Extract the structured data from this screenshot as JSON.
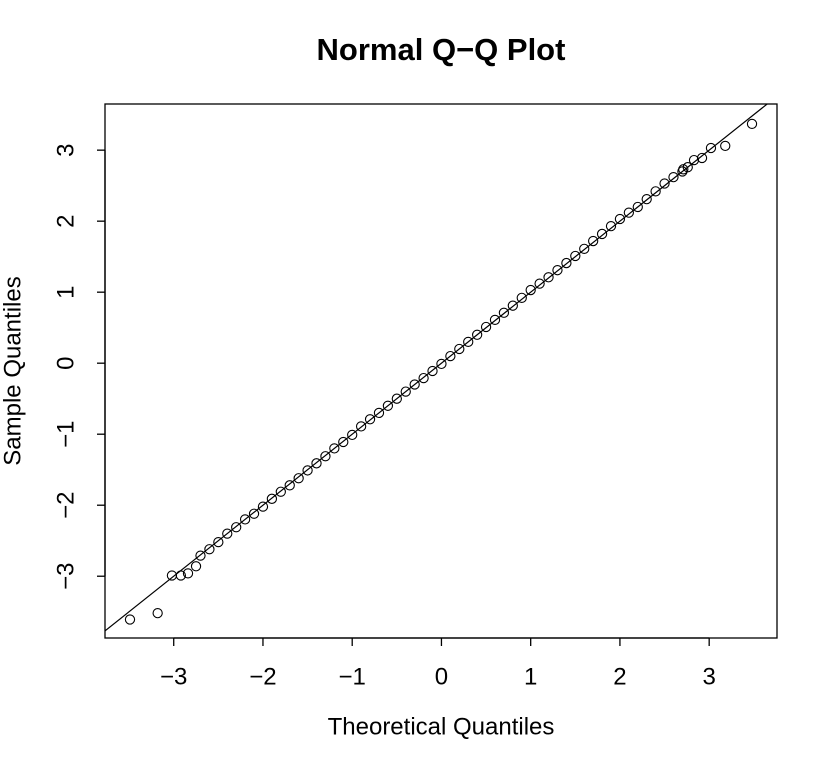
{
  "chart_data": {
    "type": "scatter",
    "title": "Normal Q−Q Plot",
    "x_label": "Theoretical Quantiles",
    "y_label": "Sample Quantiles",
    "xlim": [
      -3.77,
      3.76
    ],
    "ylim": [
      -3.87,
      3.65
    ],
    "xticks": [
      {
        "value": -3,
        "label": "−3"
      },
      {
        "value": -2,
        "label": "−2"
      },
      {
        "value": -1,
        "label": "−1"
      },
      0,
      1,
      2,
      3
    ],
    "yticks": [
      {
        "value": -3,
        "label": "−3"
      },
      {
        "value": -2,
        "label": "−2"
      },
      {
        "value": -1,
        "label": "−1"
      },
      0,
      1,
      2,
      3
    ],
    "color": "#000000",
    "reference_line": {
      "intercept": 0,
      "slope": 1
    },
    "series": [
      {
        "name": "sample",
        "x": [
          -3.49,
          -3.18,
          -3.02,
          -2.92,
          -2.84,
          -2.75,
          -2.7,
          -2.6,
          -2.5,
          -2.4,
          -2.3,
          -2.2,
          -2.1,
          -2.0,
          -1.9,
          -1.8,
          -1.7,
          -1.6,
          -1.5,
          -1.4,
          -1.3,
          -1.2,
          -1.1,
          -1.0,
          -0.9,
          -0.8,
          -0.7,
          -0.6,
          -0.5,
          -0.4,
          -0.3,
          -0.2,
          -0.1,
          0,
          0.1,
          0.2,
          0.3,
          0.4,
          0.5,
          0.6,
          0.7,
          0.8,
          0.9,
          1.0,
          1.1,
          1.2,
          1.3,
          1.4,
          1.5,
          1.6,
          1.7,
          1.8,
          1.9,
          2.0,
          2.1,
          2.2,
          2.3,
          2.4,
          2.5,
          2.6,
          2.7,
          2.71,
          2.76,
          2.83,
          2.92,
          3.02,
          3.18,
          3.48
        ],
        "values": [
          -3.61,
          -3.52,
          -2.99,
          -2.99,
          -2.96,
          -2.86,
          -2.71,
          -2.62,
          -2.52,
          -2.4,
          -2.31,
          -2.2,
          -2.12,
          -2.02,
          -1.91,
          -1.81,
          -1.72,
          -1.62,
          -1.51,
          -1.41,
          -1.31,
          -1.2,
          -1.11,
          -1.01,
          -0.89,
          -0.79,
          -0.7,
          -0.6,
          -0.5,
          -0.4,
          -0.3,
          -0.21,
          -0.11,
          -0.01,
          0.1,
          0.2,
          0.3,
          0.4,
          0.51,
          0.61,
          0.71,
          0.81,
          0.92,
          1.03,
          1.12,
          1.21,
          1.31,
          1.41,
          1.51,
          1.61,
          1.72,
          1.82,
          1.93,
          2.03,
          2.12,
          2.2,
          2.31,
          2.42,
          2.53,
          2.62,
          2.7,
          2.73,
          2.76,
          2.86,
          2.89,
          3.03,
          3.06,
          3.37
        ]
      }
    ]
  }
}
